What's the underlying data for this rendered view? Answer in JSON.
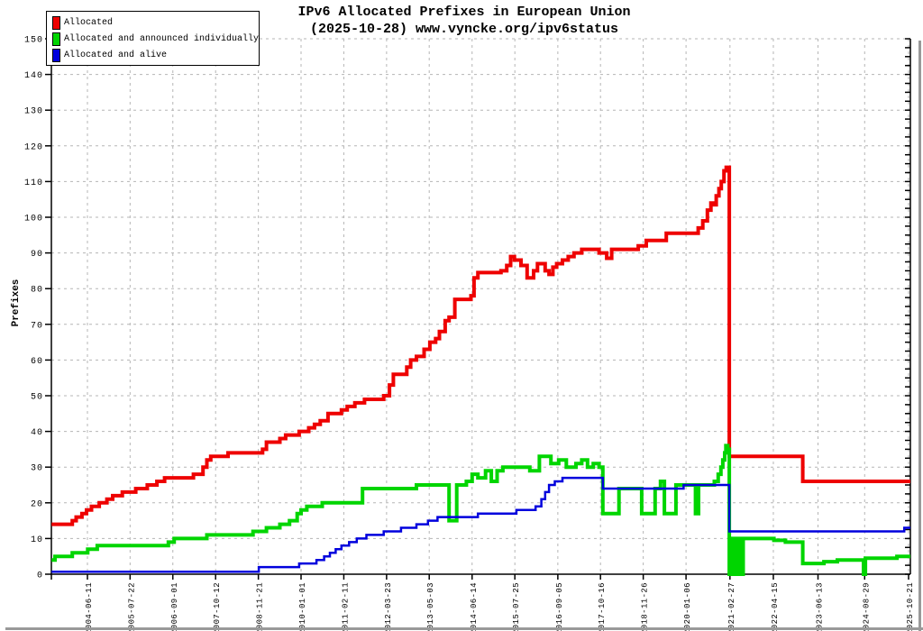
{
  "chart": {
    "title_line1": "IPv6 Allocated Prefixes in European Union",
    "title_line2": "(2025-10-28) www.vyncke.org/ipv6status",
    "ylabel": "Prefixes"
  },
  "chart_data": {
    "type": "line",
    "step_interpolation": true,
    "title": "IPv6 Allocated Prefixes in European Union",
    "subtitle": "(2025-10-28) www.vyncke.org/ipv6status",
    "xlabel": "",
    "ylabel": "Prefixes",
    "ylim": [
      0,
      150
    ],
    "ytick_interval": 10,
    "grid": true,
    "grid_color": "#b5b5b5",
    "legend_position": "top-left",
    "x_tick_labels": [
      "2004-06-11",
      "2005-07-22",
      "2006-09-01",
      "2007-10-12",
      "2008-11-21",
      "2010-01-01",
      "2011-02-11",
      "2012-03-23",
      "2013-05-03",
      "2014-06-14",
      "2015-07-25",
      "2016-09-05",
      "2017-10-16",
      "2018-11-26",
      "2020-01-06",
      "2021-02-27",
      "2022-04-15",
      "2023-06-13",
      "2024-08-29",
      "2025-10-21"
    ],
    "x_unit": "decimal_year",
    "series": [
      {
        "name": "Allocated",
        "color": "#ee0000",
        "line_width": 4,
        "points": [
          [
            2003.51,
            14
          ],
          [
            2004.05,
            15
          ],
          [
            2004.15,
            16
          ],
          [
            2004.3,
            17
          ],
          [
            2004.42,
            18
          ],
          [
            2004.55,
            19
          ],
          [
            2004.75,
            20
          ],
          [
            2004.95,
            21
          ],
          [
            2005.1,
            22
          ],
          [
            2005.35,
            23
          ],
          [
            2005.7,
            24
          ],
          [
            2006.0,
            25
          ],
          [
            2006.25,
            26
          ],
          [
            2006.45,
            27
          ],
          [
            2007.2,
            28
          ],
          [
            2007.45,
            30
          ],
          [
            2007.55,
            32
          ],
          [
            2007.65,
            33
          ],
          [
            2008.1,
            34
          ],
          [
            2009.0,
            35
          ],
          [
            2009.1,
            37
          ],
          [
            2009.45,
            38
          ],
          [
            2009.6,
            39
          ],
          [
            2009.95,
            40
          ],
          [
            2010.2,
            41
          ],
          [
            2010.35,
            42
          ],
          [
            2010.5,
            43
          ],
          [
            2010.7,
            45
          ],
          [
            2011.05,
            46
          ],
          [
            2011.2,
            47
          ],
          [
            2011.4,
            48
          ],
          [
            2011.65,
            49
          ],
          [
            2012.15,
            50
          ],
          [
            2012.3,
            53
          ],
          [
            2012.4,
            56
          ],
          [
            2012.75,
            58
          ],
          [
            2012.85,
            60
          ],
          [
            2013.0,
            61
          ],
          [
            2013.2,
            63
          ],
          [
            2013.35,
            65
          ],
          [
            2013.5,
            66
          ],
          [
            2013.6,
            68
          ],
          [
            2013.75,
            71
          ],
          [
            2013.85,
            72
          ],
          [
            2014.0,
            77
          ],
          [
            2014.42,
            78
          ],
          [
            2014.5,
            83
          ],
          [
            2014.6,
            84.5
          ],
          [
            2015.2,
            85
          ],
          [
            2015.35,
            86.5
          ],
          [
            2015.45,
            89
          ],
          [
            2015.55,
            88
          ],
          [
            2015.72,
            86.5
          ],
          [
            2015.88,
            83
          ],
          [
            2016.05,
            85
          ],
          [
            2016.15,
            87
          ],
          [
            2016.35,
            85
          ],
          [
            2016.45,
            84
          ],
          [
            2016.55,
            86
          ],
          [
            2016.65,
            87
          ],
          [
            2016.8,
            88
          ],
          [
            2016.95,
            89
          ],
          [
            2017.1,
            90
          ],
          [
            2017.3,
            91
          ],
          [
            2017.75,
            90
          ],
          [
            2017.95,
            88.5
          ],
          [
            2018.08,
            91
          ],
          [
            2018.77,
            92
          ],
          [
            2018.98,
            93.5
          ],
          [
            2019.5,
            95.5
          ],
          [
            2020.33,
            97
          ],
          [
            2020.45,
            99
          ],
          [
            2020.57,
            102
          ],
          [
            2020.66,
            104
          ],
          [
            2020.75,
            103.5
          ],
          [
            2020.8,
            106
          ],
          [
            2020.87,
            108
          ],
          [
            2020.93,
            110
          ],
          [
            2021.0,
            113
          ],
          [
            2021.06,
            114
          ],
          [
            2021.14,
            33
          ],
          [
            2023.05,
            26
          ]
        ]
      },
      {
        "name": "Allocated and announced individually",
        "color": "#00d500",
        "line_width": 4,
        "points": [
          [
            2003.51,
            4
          ],
          [
            2003.6,
            5
          ],
          [
            2004.05,
            6
          ],
          [
            2004.45,
            7
          ],
          [
            2004.7,
            8
          ],
          [
            2006.55,
            9
          ],
          [
            2006.7,
            10
          ],
          [
            2007.55,
            11
          ],
          [
            2008.75,
            12
          ],
          [
            2009.1,
            13
          ],
          [
            2009.45,
            14
          ],
          [
            2009.7,
            15
          ],
          [
            2009.9,
            17
          ],
          [
            2010.0,
            18
          ],
          [
            2010.15,
            19
          ],
          [
            2010.55,
            20
          ],
          [
            2011.6,
            24
          ],
          [
            2013.0,
            25
          ],
          [
            2013.85,
            15
          ],
          [
            2014.05,
            25
          ],
          [
            2014.3,
            26
          ],
          [
            2014.45,
            28
          ],
          [
            2014.6,
            27
          ],
          [
            2014.8,
            29
          ],
          [
            2014.95,
            26
          ],
          [
            2015.1,
            29
          ],
          [
            2015.25,
            30
          ],
          [
            2015.95,
            29
          ],
          [
            2016.2,
            33
          ],
          [
            2016.5,
            31
          ],
          [
            2016.7,
            32
          ],
          [
            2016.9,
            30
          ],
          [
            2017.15,
            31
          ],
          [
            2017.3,
            32
          ],
          [
            2017.45,
            30
          ],
          [
            2017.6,
            31
          ],
          [
            2017.75,
            30
          ],
          [
            2017.85,
            17
          ],
          [
            2018.27,
            24
          ],
          [
            2018.86,
            17
          ],
          [
            2019.21,
            24
          ],
          [
            2019.35,
            26
          ],
          [
            2019.45,
            17
          ],
          [
            2019.75,
            25
          ],
          [
            2020.26,
            17
          ],
          [
            2020.34,
            25
          ],
          [
            2020.75,
            26
          ],
          [
            2020.85,
            28
          ],
          [
            2020.92,
            30
          ],
          [
            2020.97,
            32
          ],
          [
            2021.02,
            34
          ],
          [
            2021.05,
            36
          ],
          [
            2021.1,
            35
          ],
          [
            2021.14,
            0
          ],
          [
            2021.2,
            10
          ],
          [
            2021.28,
            0
          ],
          [
            2021.35,
            10
          ],
          [
            2021.42,
            0
          ],
          [
            2021.5,
            10
          ],
          [
            2022.3,
            9.5
          ],
          [
            2022.6,
            9
          ],
          [
            2023.05,
            3
          ],
          [
            2023.6,
            3.5
          ],
          [
            2023.95,
            4
          ],
          [
            2024.6,
            4
          ],
          [
            2024.63,
            0
          ],
          [
            2024.68,
            4.5
          ],
          [
            2025.5,
            5
          ]
        ]
      },
      {
        "name": "Allocated and alive",
        "color": "#0000dd",
        "line_width": 2.5,
        "points": [
          [
            2003.51,
            0.7
          ],
          [
            2008.9,
            2
          ],
          [
            2009.95,
            3
          ],
          [
            2010.4,
            4
          ],
          [
            2010.6,
            5
          ],
          [
            2010.75,
            6
          ],
          [
            2010.9,
            7
          ],
          [
            2011.05,
            8
          ],
          [
            2011.25,
            9
          ],
          [
            2011.45,
            10
          ],
          [
            2011.7,
            11
          ],
          [
            2012.15,
            12
          ],
          [
            2012.6,
            13
          ],
          [
            2013.0,
            14
          ],
          [
            2013.3,
            15
          ],
          [
            2013.55,
            16
          ],
          [
            2014.6,
            17
          ],
          [
            2015.6,
            18
          ],
          [
            2016.1,
            19
          ],
          [
            2016.25,
            21
          ],
          [
            2016.35,
            23
          ],
          [
            2016.45,
            25
          ],
          [
            2016.6,
            26
          ],
          [
            2016.8,
            27
          ],
          [
            2017.85,
            24
          ],
          [
            2019.95,
            25
          ],
          [
            2021.14,
            12
          ],
          [
            2025.69,
            13
          ]
        ]
      }
    ]
  }
}
